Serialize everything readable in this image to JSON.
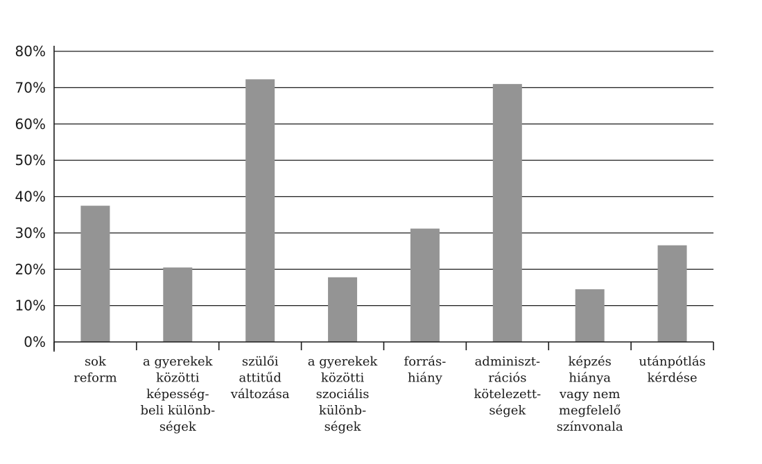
{
  "chart_data": {
    "type": "bar",
    "title": "",
    "xlabel": "",
    "ylabel": "",
    "ylim": [
      0,
      80
    ],
    "y_ticks": [
      "0%",
      "10%",
      "20%",
      "30%",
      "40%",
      "50%",
      "60%",
      "70%",
      "80%"
    ],
    "grid": "horizontal",
    "bar_color": "#949494",
    "categories": [
      [
        "sok",
        "reform"
      ],
      [
        "a gyerekek",
        "közötti",
        "képesség-",
        "beli különb-",
        "ségek"
      ],
      [
        "szülői",
        "attitűd",
        "változása"
      ],
      [
        "a gyerekek",
        "közötti",
        "szociális",
        "különb-",
        "ségek"
      ],
      [
        "forrás-",
        "hiány"
      ],
      [
        "adminiszt-",
        "rációs",
        "kötelezett-",
        "ségek"
      ],
      [
        "képzés",
        "hiánya",
        "vagy nem",
        "megfelelő",
        "színvonala"
      ],
      [
        "utánpótlás",
        "kérdése"
      ]
    ],
    "values": [
      37.5,
      20.5,
      72.3,
      17.8,
      31.2,
      71.0,
      14.5,
      26.6
    ]
  }
}
